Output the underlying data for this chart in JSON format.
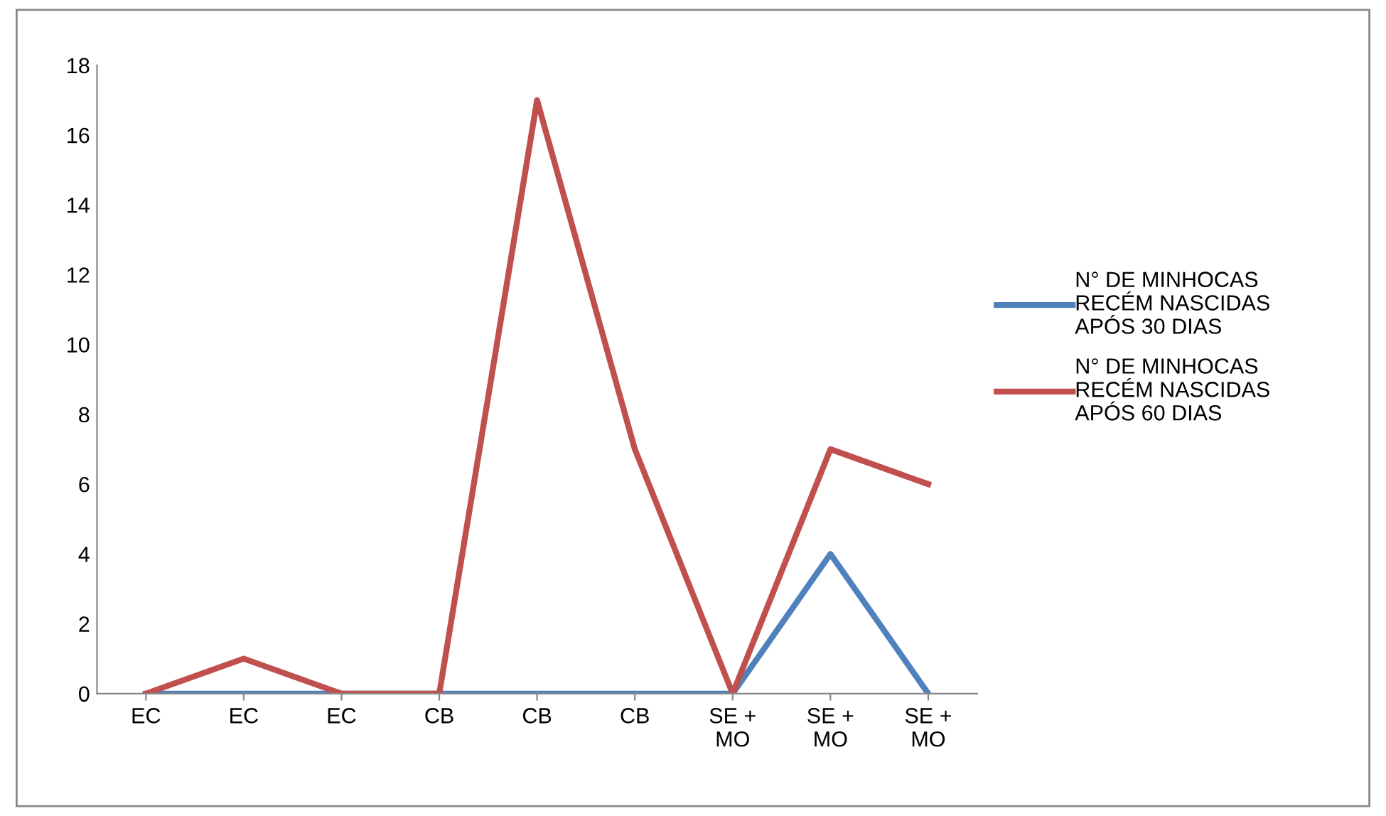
{
  "chart_data": {
    "type": "line",
    "categories": [
      "EC",
      "EC",
      "EC",
      "CB",
      "CB",
      "CB",
      "SE +\nMO",
      "SE +\nMO",
      "SE +\nMO"
    ],
    "series": [
      {
        "name": "N° DE MINHOCAS\nRECÉM NASCIDAS\nAPÓS 30 DIAS",
        "color": "#4f81bd",
        "values": [
          0,
          0,
          0,
          0,
          0,
          0,
          0,
          4,
          0
        ]
      },
      {
        "name": "N° DE MINHOCAS\nRECÉM NASCIDAS\nAPÓS 60 DIAS",
        "color": "#c0504d",
        "values": [
          0,
          1,
          0,
          0,
          17,
          7,
          0,
          7,
          6
        ]
      }
    ],
    "ylim": [
      0,
      18
    ],
    "yticks": [
      0,
      2,
      4,
      6,
      8,
      10,
      12,
      14,
      16,
      18
    ],
    "grid": false,
    "legend": "right",
    "marker": "none",
    "line_style": "solid"
  }
}
